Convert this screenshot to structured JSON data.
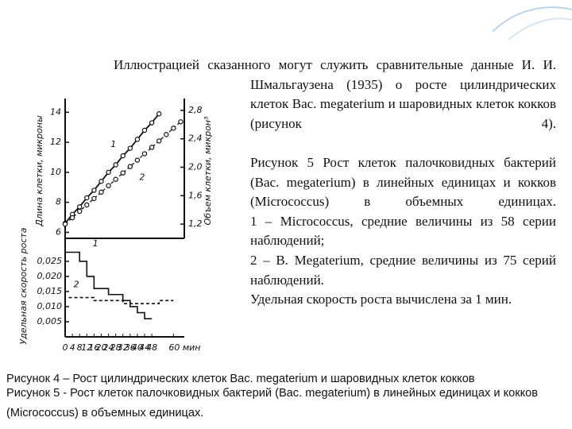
{
  "text": {
    "intro_line1": "Иллюстрацией сказанного могут служить сравнительные данные И. И.",
    "intro_rest": "Шмальгаузена (1935) о росте цилиндрических клеток Bac. megaterium и шаровидных клеток кокков (рисунок 4).",
    "items": [
      "Рисунок 5 Рост клеток палочковидных бактерий (Bac. megaterium) в линейных единицах и кокков (Micrococcus) в объемных единицах.",
      "1 – Micrococcus, средние величины из 58 серии наблюдений;",
      "2 – B. Megaterium, средние величины из 75 серий наблюдений.",
      "Удельная скорость роста вычислена за 1 мин."
    ]
  },
  "captions": [
    "Рисунок 4 – Рост цилиндрических клеток Bac. megaterium и шаровидных клеток кокков",
    "Рисунок 5 - Рост клеток палочковидных бактерий (Bac. megaterium) в линейных единицах и кокков (Micrococcus) в объемных единицах."
  ],
  "figure": {
    "xlim": [
      0,
      66
    ],
    "xticks": [
      0,
      4,
      8,
      12,
      16,
      20,
      24,
      28,
      32,
      36,
      40,
      44,
      48,
      {
        "value": 60,
        "label": "60 мин"
      }
    ],
    "upper": {
      "ylabel": "Длина клетки, микроны",
      "y2label": "Объем клетки, микрон³",
      "ylim": [
        5.6,
        14.6
      ],
      "yticks": [
        6,
        8,
        10,
        12,
        14
      ],
      "y2lim": [
        1.0,
        2.9
      ],
      "y2ticks": [
        {
          "value": 1.2,
          "label": "1,2"
        },
        {
          "value": 1.6,
          "label": "1,6"
        },
        {
          "value": 2.0,
          "label": "2,0"
        },
        {
          "value": 2.4,
          "label": "2,4"
        },
        {
          "value": 2.8,
          "label": "2,8"
        }
      ],
      "series": [
        {
          "name": "1",
          "x": [
            0,
            4,
            8,
            12,
            16,
            20,
            24,
            28,
            32,
            36,
            40,
            44,
            48,
            52
          ],
          "values": [
            6.6,
            7.2,
            7.7,
            8.3,
            8.8,
            9.4,
            10.0,
            10.5,
            11.1,
            11.6,
            12.2,
            12.8,
            13.3,
            13.9
          ]
        },
        {
          "name": "2",
          "axis": "y2",
          "x": [
            0,
            4,
            8,
            12,
            16,
            20,
            24,
            28,
            32,
            36,
            40,
            44,
            48,
            52,
            56,
            60,
            64
          ],
          "values": [
            1.2,
            1.29,
            1.38,
            1.47,
            1.56,
            1.65,
            1.74,
            1.83,
            1.92,
            2.01,
            2.1,
            2.19,
            2.28,
            2.37,
            2.46,
            2.55,
            2.64
          ]
        }
      ]
    },
    "lower": {
      "ylabel": "Удельная скорость роста",
      "ylim": [
        0,
        0.0326
      ],
      "yticks": [
        {
          "value": 0.005,
          "label": "0,005"
        },
        {
          "value": 0.01,
          "label": "0,010"
        },
        {
          "value": 0.015,
          "label": "0,015"
        },
        {
          "value": 0.02,
          "label": "0,020"
        },
        {
          "value": 0.025,
          "label": "0,025"
        }
      ],
      "series": [
        {
          "name": "1",
          "x": [
            0,
            8,
            12,
            16,
            24,
            32,
            36,
            40,
            44,
            48
          ],
          "values": [
            0.028,
            0.025,
            0.02,
            0.016,
            0.014,
            0.012,
            0.01,
            0.008,
            0.006,
            0.006
          ]
        },
        {
          "name": "2",
          "x": [
            2,
            8,
            16,
            24,
            32,
            40,
            48,
            52,
            56,
            60
          ],
          "values": [
            0.013,
            0.013,
            0.012,
            0.012,
            0.011,
            0.011,
            0.011,
            0.012,
            0.012,
            0.012
          ]
        }
      ]
    }
  }
}
